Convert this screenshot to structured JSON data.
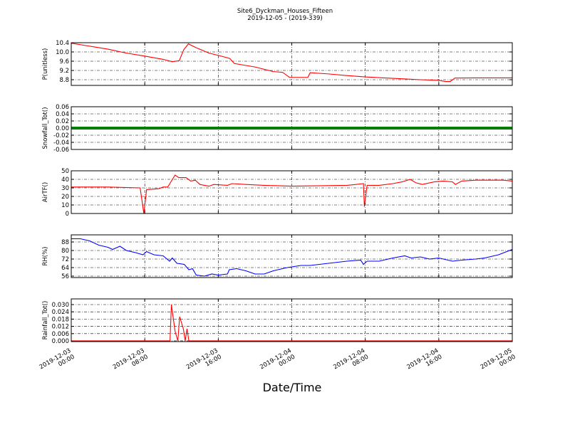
{
  "title": "Site6_Dyckman_Houses_Fifteen",
  "subtitle": "2019-12-05 - (2019-339)",
  "x_axis": {
    "label": "Date/Time",
    "xlim": [
      "2019-12-03 00:00",
      "2019-12-05 00:00"
    ],
    "xticks": [
      "2019-12-03 00:00",
      "2019-12-03 08:00",
      "2019-12-03 16:00",
      "2019-12-04 00:00",
      "2019-12-04 08:00",
      "2019-12-04 16:00",
      "2019-12-05 00:00"
    ]
  },
  "chart_data": [
    {
      "type": "line",
      "y_label": "P(unitless)",
      "color": "#ff0000",
      "grid": true,
      "ylim": [
        8.554,
        10.4
      ],
      "yticks": [
        8.8,
        9.2,
        9.6,
        {
          "value": 10,
          "label": "10.0"
        },
        10.4
      ],
      "x": [
        "2019-12-03 00:00",
        "2019-12-03 02:00",
        "2019-12-03 04:00",
        "2019-12-03 06:00",
        "2019-12-03 08:00",
        "2019-12-03 10:00",
        "2019-12-03 11:00",
        "2019-12-03 11:45",
        "2019-12-03 12:15",
        "2019-12-03 12:45",
        "2019-12-03 13:30",
        "2019-12-03 15:00",
        "2019-12-03 16:30",
        "2019-12-03 17:15",
        "2019-12-03 17:45",
        "2019-12-03 20:00",
        "2019-12-03 22:00",
        "2019-12-03 23:00",
        "2019-12-03 23:45",
        "2019-12-04 01:45",
        "2019-12-04 02:00",
        "2019-12-04 04:00",
        "2019-12-04 06:00",
        "2019-12-04 08:00",
        "2019-12-04 10:00",
        "2019-12-04 12:00",
        "2019-12-04 14:00",
        "2019-12-04 16:00",
        "2019-12-04 16:45",
        "2019-12-04 17:15",
        "2019-12-04 17:45",
        "2019-12-04 20:00",
        "2019-12-05 00:00"
      ],
      "values": [
        10.38,
        10.25,
        10.12,
        9.95,
        9.82,
        9.68,
        9.58,
        9.62,
        10.1,
        10.35,
        10.2,
        9.95,
        9.8,
        9.72,
        9.5,
        9.35,
        9.15,
        9.12,
        8.9,
        8.9,
        9.1,
        9.05,
        8.98,
        8.92,
        8.88,
        8.84,
        8.8,
        8.77,
        8.72,
        8.72,
        8.87,
        8.88,
        8.88
      ]
    },
    {
      "type": "line",
      "y_label": "Snowfall_Tot()",
      "color": "#008000",
      "grid": true,
      "ylim": [
        -0.06,
        0.06
      ],
      "yticks": [
        -0.06,
        -0.04,
        -0.02,
        {
          "value": 0,
          "label": "0.00"
        },
        0.02,
        0.04,
        0.06
      ],
      "x": [
        "2019-12-03 00:00",
        "2019-12-05 00:00"
      ],
      "values": [
        0,
        0
      ]
    },
    {
      "type": "line",
      "y_label": "AirTF()",
      "color": "#ff0000",
      "grid": true,
      "ylim": [
        0,
        50
      ],
      "yticks": [
        0,
        10,
        20,
        30,
        40,
        50
      ],
      "x": [
        "2019-12-03 00:00",
        "2019-12-03 04:00",
        "2019-12-03 07:30",
        "2019-12-03 07:54",
        "2019-12-03 08:12",
        "2019-12-03 09:30",
        "2019-12-03 10:00",
        "2019-12-03 10:30",
        "2019-12-03 10:54",
        "2019-12-03 11:18",
        "2019-12-03 11:42",
        "2019-12-03 12:30",
        "2019-12-03 13:00",
        "2019-12-03 13:30",
        "2019-12-03 14:00",
        "2019-12-03 14:30",
        "2019-12-03 15:00",
        "2019-12-03 15:30",
        "2019-12-03 17:00",
        "2019-12-03 17:30",
        "2019-12-03 19:00",
        "2019-12-03 21:00",
        "2019-12-04 00:00",
        "2019-12-04 06:00",
        "2019-12-04 07:00",
        "2019-12-04 07:48",
        "2019-12-04 07:54",
        "2019-12-04 08:12",
        "2019-12-04 09:30",
        "2019-12-04 11:00",
        "2019-12-04 12:00",
        "2019-12-04 12:54",
        "2019-12-04 13:30",
        "2019-12-04 14:12",
        "2019-12-04 15:30",
        "2019-12-04 16:30",
        "2019-12-04 17:30",
        "2019-12-04 17:48",
        "2019-12-04 18:30",
        "2019-12-04 20:00",
        "2019-12-04 23:00",
        "2019-12-05 00:00"
      ],
      "values": [
        31,
        31,
        30,
        0,
        28,
        29,
        31,
        31,
        38,
        45,
        42,
        42,
        38,
        39,
        34,
        33,
        32,
        34,
        33,
        35,
        34,
        33,
        32,
        33,
        34,
        35,
        8,
        33,
        33,
        35,
        37,
        40,
        36,
        34,
        37,
        38,
        37,
        34,
        38,
        39,
        39,
        38
      ]
    },
    {
      "type": "line",
      "y_label": "RH(%)",
      "color": "#0000ff",
      "grid": true,
      "ylim": [
        54.67,
        94.67
      ],
      "yticks": [
        56,
        64,
        72,
        80,
        88
      ],
      "x": [
        "2019-12-03 00:00",
        "2019-12-03 01:00",
        "2019-12-03 02:00",
        "2019-12-03 03:00",
        "2019-12-03 04:00",
        "2019-12-03 04:30",
        "2019-12-03 05:18",
        "2019-12-03 06:00",
        "2019-12-03 07:00",
        "2019-12-03 07:48",
        "2019-12-03 08:12",
        "2019-12-03 09:00",
        "2019-12-03 10:00",
        "2019-12-03 10:42",
        "2019-12-03 11:00",
        "2019-12-03 11:30",
        "2019-12-03 12:18",
        "2019-12-03 12:48",
        "2019-12-03 13:12",
        "2019-12-03 13:36",
        "2019-12-03 14:30",
        "2019-12-03 15:18",
        "2019-12-03 16:00",
        "2019-12-03 17:00",
        "2019-12-03 17:12",
        "2019-12-03 18:00",
        "2019-12-03 19:00",
        "2019-12-03 20:00",
        "2019-12-03 21:00",
        "2019-12-03 22:00",
        "2019-12-03 23:30",
        "2019-12-04 01:00",
        "2019-12-04 02:00",
        "2019-12-04 04:00",
        "2019-12-04 06:00",
        "2019-12-04 07:30",
        "2019-12-04 07:48",
        "2019-12-04 08:12",
        "2019-12-04 09:30",
        "2019-12-04 11:00",
        "2019-12-04 12:18",
        "2019-12-04 13:00",
        "2019-12-04 14:00",
        "2019-12-04 15:00",
        "2019-12-04 16:00",
        "2019-12-04 17:30",
        "2019-12-04 18:30",
        "2019-12-04 20:00",
        "2019-12-04 21:00",
        "2019-12-04 22:30",
        "2019-12-05 00:00"
      ],
      "values": [
        91,
        91,
        89,
        85,
        83,
        81,
        84,
        80,
        78,
        76,
        79,
        76,
        75,
        70,
        73,
        68,
        67,
        62,
        63,
        57,
        56,
        58,
        57,
        58,
        62,
        63,
        61,
        58,
        58,
        61,
        64,
        66,
        66,
        68,
        70,
        71,
        67,
        70,
        70,
        73,
        75,
        73,
        74,
        72,
        73,
        70,
        71,
        72,
        73,
        76,
        81
      ]
    },
    {
      "type": "line",
      "y_label": "Rainfall_Tot()",
      "color": "#ff0000",
      "grid": true,
      "ylim": [
        -0.0006,
        0.0347
      ],
      "yticks": [
        {
          "value": 0,
          "label": "0.000"
        },
        {
          "value": 0.006,
          "label": "0.006"
        },
        {
          "value": 0.012,
          "label": "0.012"
        },
        {
          "value": 0.018,
          "label": "0.018"
        },
        {
          "value": 0.024,
          "label": "0.024"
        },
        {
          "value": 0.03,
          "label": "0.030"
        }
      ],
      "x": [
        "2019-12-03 00:00",
        "2019-12-03 10:45",
        "2019-12-03 10:54",
        "2019-12-03 11:18",
        "2019-12-03 11:36",
        "2019-12-03 11:48",
        "2019-12-03 12:12",
        "2019-12-03 12:24",
        "2019-12-03 12:36",
        "2019-12-03 12:48",
        "2019-12-05 00:00"
      ],
      "values": [
        0,
        0,
        0.03,
        0.008,
        0,
        0.02,
        0.01,
        0,
        0.01,
        0,
        0
      ]
    }
  ]
}
